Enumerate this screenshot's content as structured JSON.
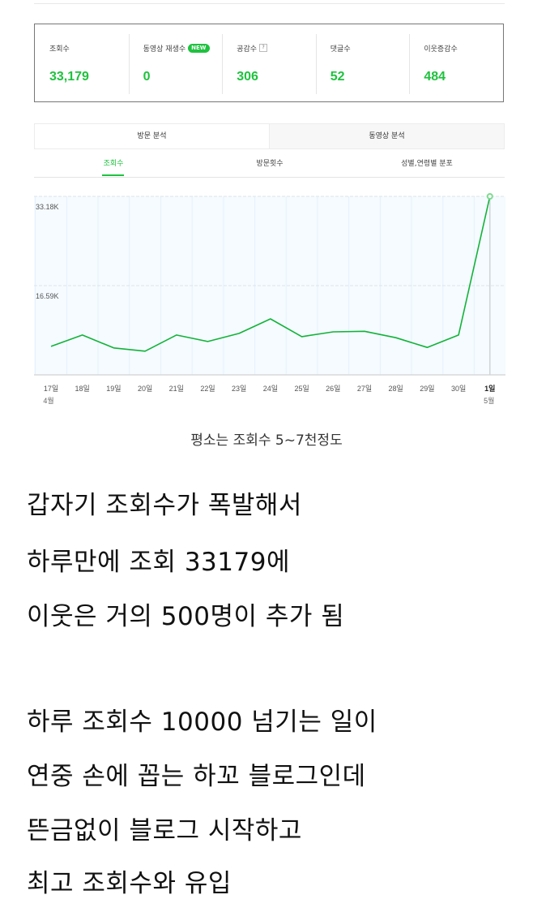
{
  "stats": [
    {
      "label": "조회수",
      "value": "33,179"
    },
    {
      "label": "동영상 재생수",
      "badge": "NEW",
      "value": "0"
    },
    {
      "label": "공감수",
      "help": "?",
      "value": "306"
    },
    {
      "label": "댓글수",
      "value": "52"
    },
    {
      "label": "이웃증감수",
      "value": "484"
    }
  ],
  "tabs": [
    {
      "label": "방문 분석",
      "active": true
    },
    {
      "label": "동영상 분석",
      "active": false
    }
  ],
  "subtabs": [
    {
      "label": "조회수",
      "active": true
    },
    {
      "label": "방문횟수",
      "active": false
    },
    {
      "label": "성별,연령별 분포",
      "active": false
    }
  ],
  "colors": {
    "accent": "#1ec23e",
    "plot_bg": "#f5fbff",
    "line": "#12b33a"
  },
  "chart_data": {
    "type": "line",
    "title": "",
    "xlabel": "",
    "ylabel": "",
    "categories": [
      "17일",
      "18일",
      "19일",
      "20일",
      "21일",
      "22일",
      "23일",
      "24일",
      "25일",
      "26일",
      "27일",
      "28일",
      "29일",
      "30일",
      "1일"
    ],
    "month_labels": {
      "0": "4월",
      "14": "5월"
    },
    "series": [
      {
        "name": "조회수",
        "values": [
          5300,
          7400,
          5000,
          4400,
          7400,
          6200,
          7700,
          10400,
          7100,
          8000,
          8100,
          6900,
          5100,
          7400,
          33179
        ]
      }
    ],
    "y_ticks": [
      "16.59K",
      "33.18K"
    ],
    "ylim": [
      0,
      33180
    ],
    "grid": true,
    "highlight_index": 14
  },
  "caption": "평소는 조회수 5~7천정도",
  "body_lines": [
    "갑자기 조회수가 폭발해서",
    "하루만에 조회 33179에",
    "이웃은 거의 500명이 추가 됨",
    "",
    "하루 조회수 10000 넘기는 일이",
    "연중 손에 꼽는 하꼬 블로그인데",
    "뜬금없이 블로그 시작하고",
    "최고 조회수와 유입"
  ]
}
